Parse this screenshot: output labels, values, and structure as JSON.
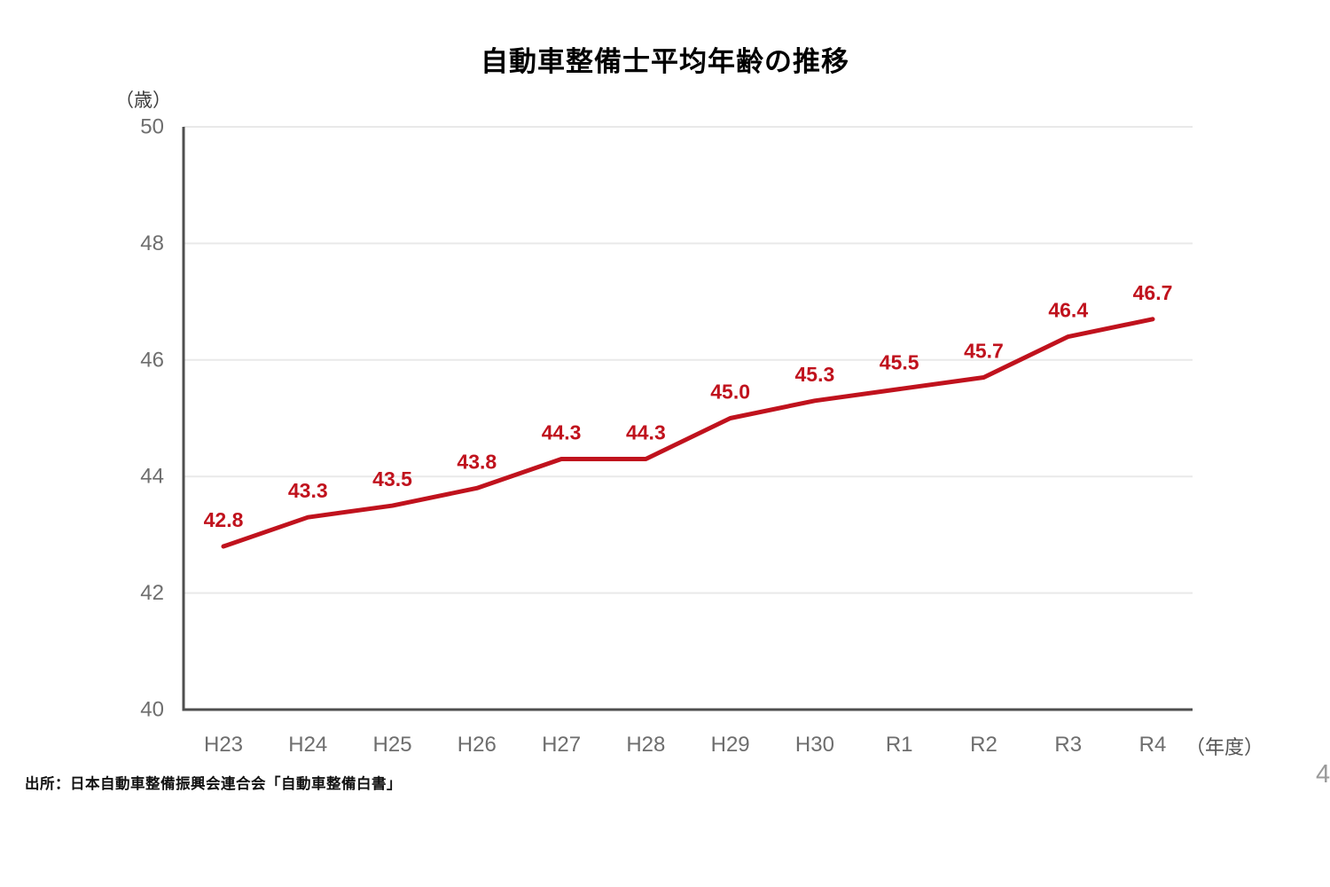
{
  "page": {
    "page_number": "4"
  },
  "chart_data": {
    "type": "line",
    "title": "自動車整備士平均年齢の推移",
    "y_axis_unit": "（歳）",
    "x_axis_unit": "（年度）",
    "categories": [
      "H23",
      "H24",
      "H25",
      "H26",
      "H27",
      "H28",
      "H29",
      "H30",
      "R1",
      "R2",
      "R3",
      "R4"
    ],
    "values": [
      42.8,
      43.3,
      43.5,
      43.8,
      44.3,
      44.3,
      45.0,
      45.3,
      45.5,
      45.7,
      46.4,
      46.7
    ],
    "value_labels": [
      "42.8",
      "43.3",
      "43.5",
      "43.8",
      "44.3",
      "44.3",
      "45.0",
      "45.3",
      "45.5",
      "45.7",
      "46.4",
      "46.7"
    ],
    "ylim": [
      40,
      50
    ],
    "y_ticks": [
      40,
      42,
      44,
      46,
      48,
      50
    ],
    "grid": "horizontal",
    "legend": "none",
    "line_color": "#c0121d",
    "value_label_color": "#c0121d",
    "tick_label_color": "#6e6e6e",
    "axis_color": "#4f4f4f",
    "grid_color": "#e9e9e9"
  },
  "source": {
    "text": "出所：日本自動車整備振興会連合会「自動車整備白書」"
  }
}
